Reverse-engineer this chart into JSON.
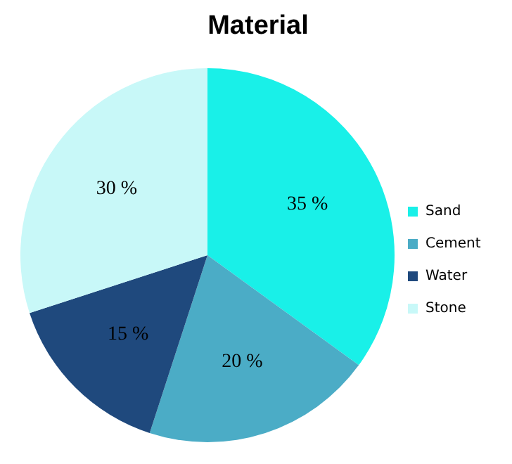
{
  "chart_data": {
    "type": "pie",
    "title": "Material",
    "categories": [
      "Sand",
      "Cement",
      "Water",
      "Stone"
    ],
    "values": [
      35,
      20,
      15,
      30
    ],
    "colors": [
      "#19f0e8",
      "#4bacc6",
      "#1f497d",
      "#c8f8f8"
    ],
    "value_labels": [
      "35 %",
      "20 %",
      "15 %",
      "30 %"
    ],
    "legend": "right"
  }
}
